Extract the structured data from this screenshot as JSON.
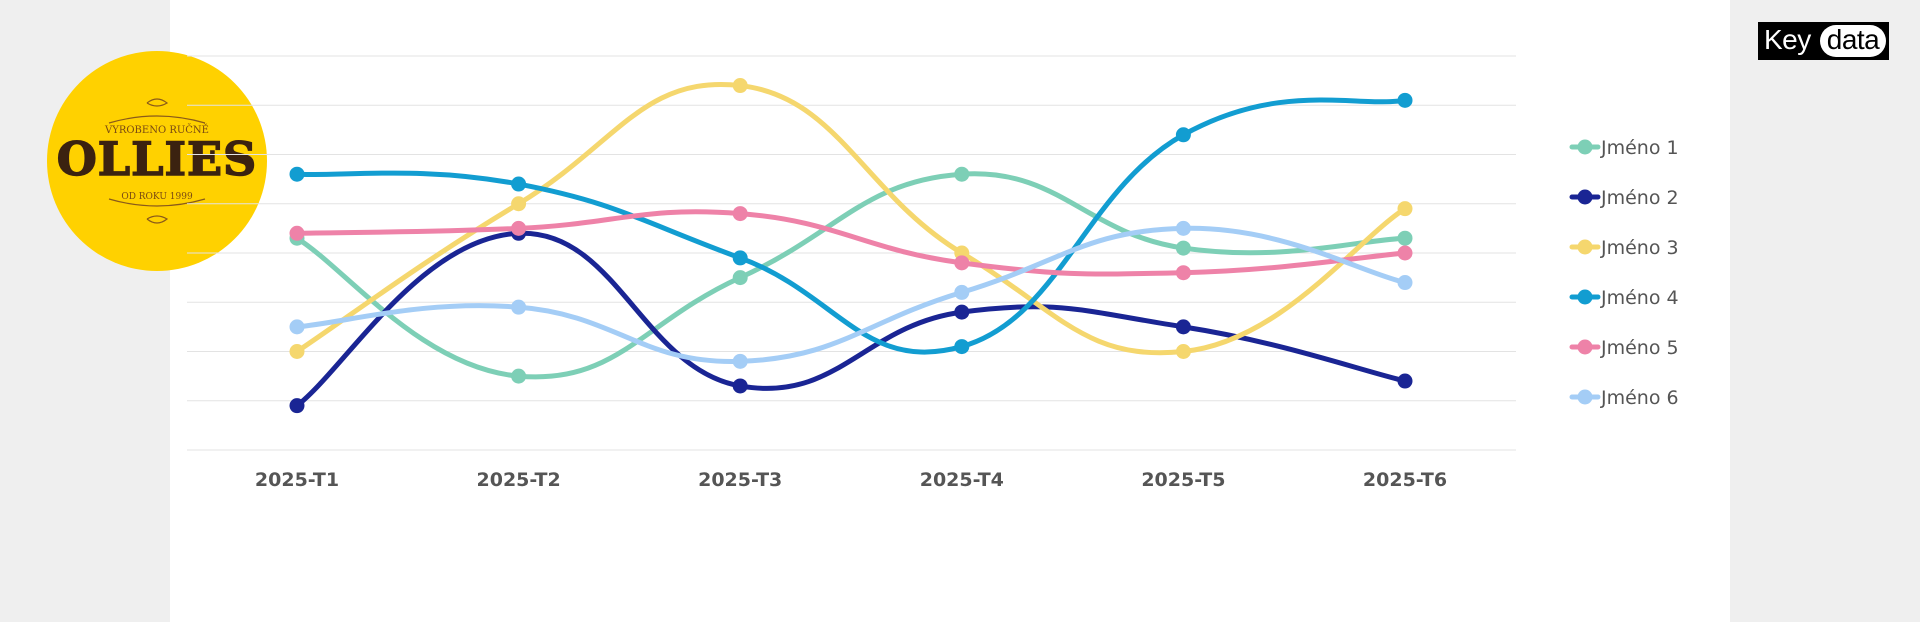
{
  "brand": {
    "logo_text": "OLLIES",
    "logo_top_text": "VYROBENO RUČNĚ",
    "logo_bottom_text": "OD ROKU 1999",
    "logo_color": "#FFD100",
    "badge_left": "Key",
    "badge_right": "data"
  },
  "chart_data": {
    "type": "line",
    "title": "",
    "xlabel": "",
    "ylabel": "",
    "categories": [
      "2025-T1",
      "2025-T2",
      "2025-T3",
      "2025-T4",
      "2025-T5",
      "2025-T6"
    ],
    "ylim": [
      0,
      8
    ],
    "grid": true,
    "legend_position": "right",
    "series": [
      {
        "name": "Jméno 1",
        "color": "#7DCFB6",
        "values": [
          4.3,
          1.5,
          3.5,
          5.6,
          4.1,
          4.3
        ]
      },
      {
        "name": "Jméno 2",
        "color": "#1A2594",
        "values": [
          0.9,
          4.4,
          1.3,
          2.8,
          2.5,
          1.4
        ]
      },
      {
        "name": "Jméno 3",
        "color": "#F5D76E",
        "values": [
          2.0,
          5.0,
          7.4,
          4.0,
          2.0,
          4.9
        ]
      },
      {
        "name": "Jméno 4",
        "color": "#129DD1",
        "values": [
          5.6,
          5.4,
          3.9,
          2.1,
          6.4,
          7.1
        ]
      },
      {
        "name": "Jméno 5",
        "color": "#EE82A8",
        "values": [
          4.4,
          4.5,
          4.8,
          3.8,
          3.6,
          4.0
        ]
      },
      {
        "name": "Jméno 6",
        "color": "#A4CDF6",
        "values": [
          2.5,
          2.9,
          1.8,
          3.2,
          4.5,
          3.4
        ]
      }
    ]
  }
}
